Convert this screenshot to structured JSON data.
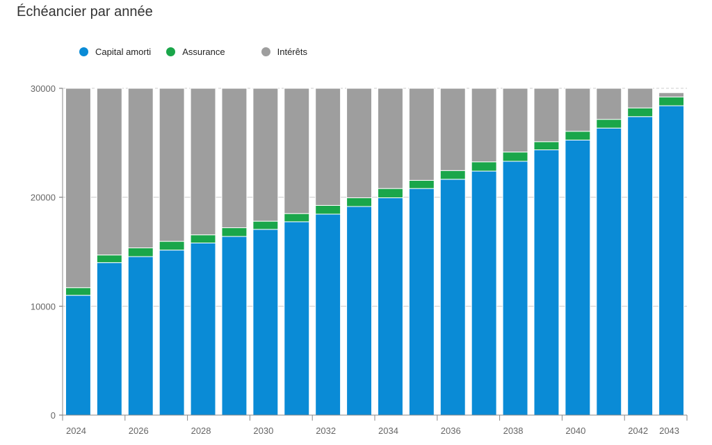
{
  "chart_data": {
    "type": "bar",
    "stacked": true,
    "title": "Échéancier par année",
    "xlabel": "",
    "ylabel": "",
    "ylim": [
      0,
      30000
    ],
    "yticks": [
      0,
      10000,
      20000,
      30000
    ],
    "grid": true,
    "legend_position": "top-left",
    "categories": [
      "2024",
      "2025",
      "2026",
      "2027",
      "2028",
      "2029",
      "2030",
      "2031",
      "2032",
      "2033",
      "2034",
      "2035",
      "2036",
      "2037",
      "2038",
      "2039",
      "2040",
      "2041",
      "2042",
      "2043"
    ],
    "xtick_labels": [
      "2024",
      "2026",
      "2028",
      "2030",
      "2032",
      "2034",
      "2036",
      "2038",
      "2040",
      "2042",
      "2043"
    ],
    "series": [
      {
        "name": "Capital amorti",
        "color": "#0a8bd6",
        "values": [
          11000,
          14000,
          14550,
          15150,
          15800,
          16400,
          17050,
          17750,
          18450,
          19150,
          19950,
          20800,
          21650,
          22400,
          23300,
          24350,
          25250,
          26350,
          27400,
          28400
        ]
      },
      {
        "name": "Assurance",
        "color": "#1aa64a",
        "values": [
          700,
          700,
          800,
          800,
          750,
          800,
          750,
          750,
          800,
          800,
          850,
          750,
          800,
          850,
          850,
          750,
          800,
          800,
          800,
          800
        ]
      },
      {
        "name": "Intérêts",
        "color": "#9e9e9e",
        "values": [
          18300,
          15300,
          14650,
          14050,
          13450,
          12800,
          12200,
          11500,
          10750,
          10050,
          9200,
          8450,
          7550,
          6750,
          5850,
          4900,
          3950,
          2850,
          1800,
          400
        ]
      }
    ]
  }
}
